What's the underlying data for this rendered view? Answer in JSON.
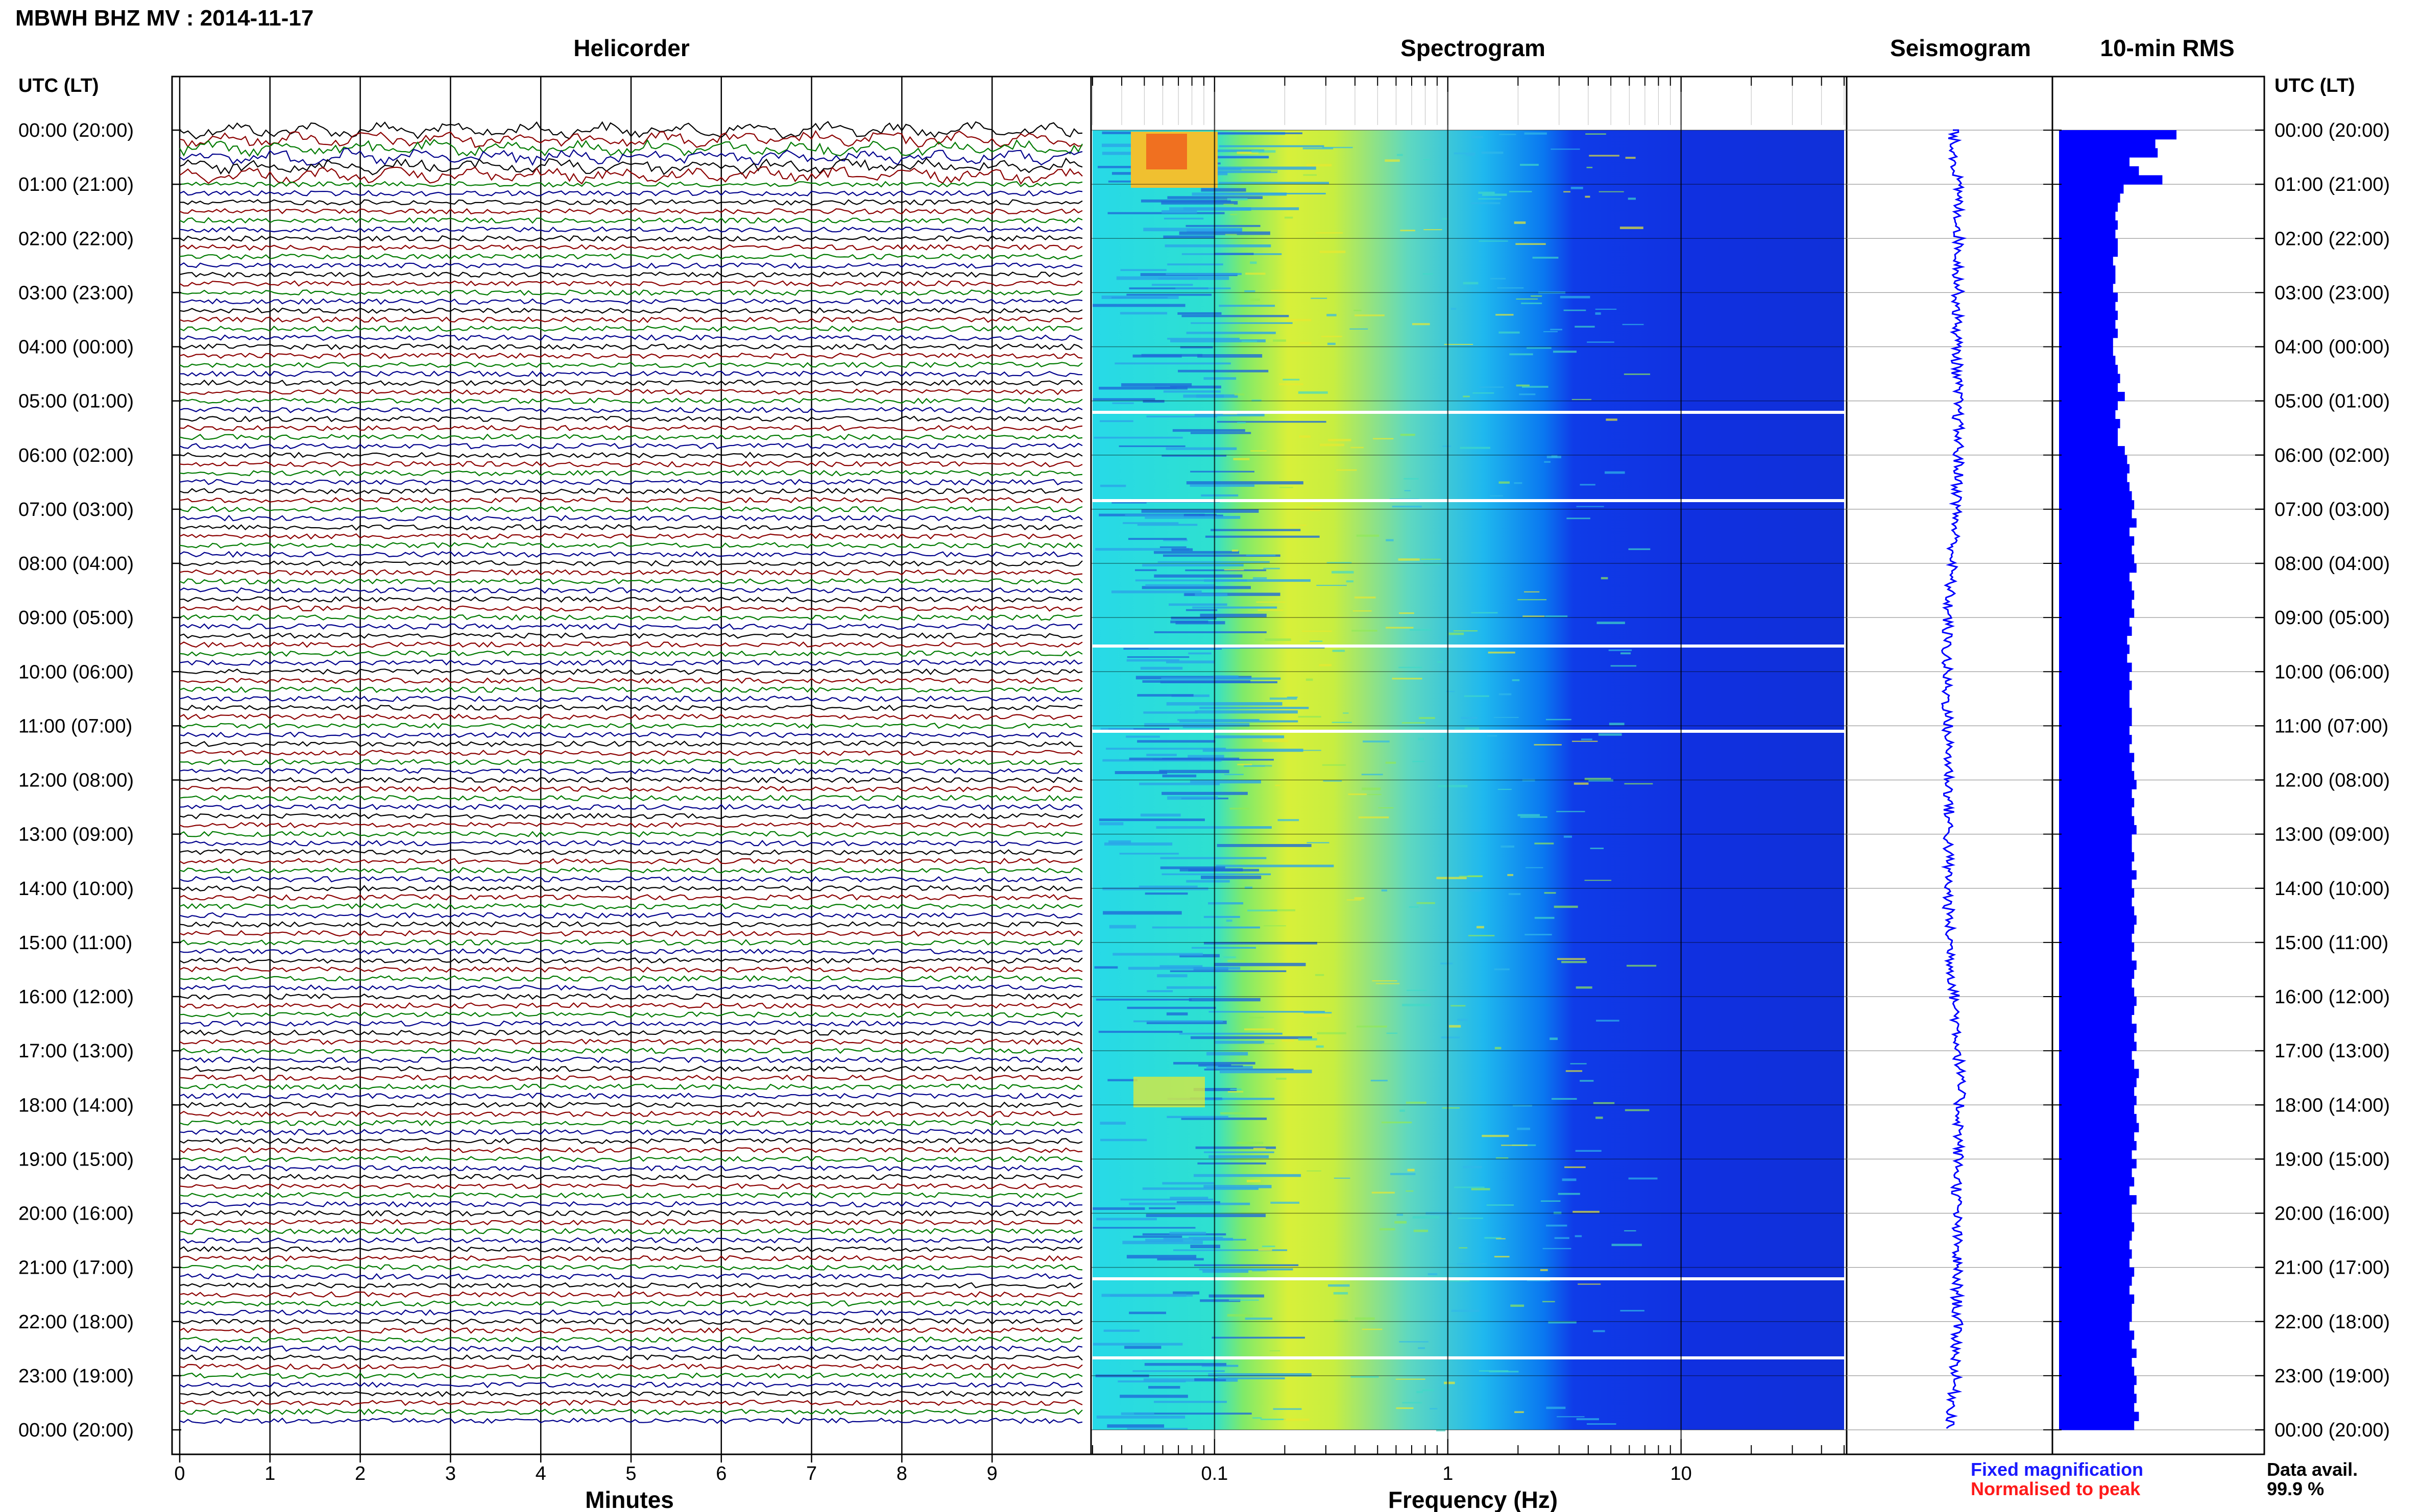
{
  "station_title": "MBWH BHZ MV : 2014-11-17",
  "panels": {
    "helicorder": "Helicorder",
    "spectrogram": "Spectrogram",
    "seismogram": "Seismogram",
    "rms": "10-min RMS"
  },
  "axis_header_left": "UTC (LT)",
  "axis_header_right": "UTC (LT)",
  "hour_labels": [
    "00:00 (20:00)",
    "01:00 (21:00)",
    "02:00 (22:00)",
    "03:00 (23:00)",
    "04:00 (00:00)",
    "05:00 (01:00)",
    "06:00 (02:00)",
    "07:00 (03:00)",
    "08:00 (04:00)",
    "09:00 (05:00)",
    "10:00 (06:00)",
    "11:00 (07:00)",
    "12:00 (08:00)",
    "13:00 (09:00)",
    "14:00 (10:00)",
    "15:00 (11:00)",
    "16:00 (12:00)",
    "17:00 (13:00)",
    "18:00 (14:00)",
    "19:00 (15:00)",
    "20:00 (16:00)",
    "21:00 (17:00)",
    "22:00 (18:00)",
    "23:00 (19:00)",
    "00:00 (20:00)"
  ],
  "minutes_ticks": [
    "0",
    "1",
    "2",
    "3",
    "4",
    "5",
    "6",
    "7",
    "8",
    "9"
  ],
  "minutes_label": "Minutes",
  "freq_ticks": [
    "0.1",
    "1",
    "10"
  ],
  "freq_label": "Frequency (Hz)",
  "legend": {
    "fixed": "Fixed magnification",
    "normalised": "Normalised to peak",
    "fixed_color": "#1a1aff",
    "normalised_color": "#ff1a1a"
  },
  "data_avail": {
    "label": "Data avail.",
    "value": "99.9 %"
  },
  "colors": {
    "trace_cycle": [
      "#000000",
      "#8b0000",
      "#007a00",
      "#00008b"
    ],
    "rms_bar": "#0000ff",
    "seismogram": "#0000ff"
  },
  "chart_data": [
    {
      "type": "line",
      "title": "Helicorder",
      "xlabel": "Minutes",
      "xlim": [
        0,
        10
      ],
      "rows": 144,
      "row_minutes": 10,
      "series_color_cycle": [
        "black",
        "darkred",
        "green",
        "darkblue"
      ]
    },
    {
      "type": "heatmap",
      "title": "Spectrogram",
      "xlabel": "Frequency (Hz)",
      "x_scale": "log",
      "xlim": [
        0.03,
        50
      ],
      "y_range_utc": [
        "00:00",
        "24:00"
      ],
      "colormap": "jet"
    },
    {
      "type": "line",
      "title": "Seismogram",
      "y_range_utc": [
        "00:00",
        "24:00"
      ]
    },
    {
      "type": "bar",
      "title": "10-min RMS",
      "orientation": "horizontal",
      "bin_minutes": 10,
      "relative_values": [
        1.0,
        0.82,
        0.84,
        0.6,
        0.68,
        0.88,
        0.55,
        0.52,
        0.5,
        0.48,
        0.5,
        0.48,
        0.5,
        0.5,
        0.46,
        0.48,
        0.48,
        0.46,
        0.5,
        0.48,
        0.5,
        0.48,
        0.5,
        0.46,
        0.46,
        0.48,
        0.5,
        0.52,
        0.5,
        0.56,
        0.5,
        0.48,
        0.52,
        0.5,
        0.5,
        0.56,
        0.58,
        0.6,
        0.58,
        0.6,
        0.62,
        0.64,
        0.62,
        0.66,
        0.6,
        0.64,
        0.62,
        0.64,
        0.66,
        0.6,
        0.62,
        0.64,
        0.62,
        0.64,
        0.6,
        0.62,
        0.58,
        0.6,
        0.58,
        0.62,
        0.6,
        0.62,
        0.6,
        0.6,
        0.62,
        0.62,
        0.6,
        0.62,
        0.6,
        0.64,
        0.62,
        0.64,
        0.66,
        0.62,
        0.64,
        0.62,
        0.64,
        0.66,
        0.62,
        0.62,
        0.64,
        0.62,
        0.66,
        0.62,
        0.64,
        0.62,
        0.64,
        0.66,
        0.64,
        0.62,
        0.64,
        0.62,
        0.66,
        0.64,
        0.62,
        0.64,
        0.66,
        0.64,
        0.62,
        0.66,
        0.64,
        0.66,
        0.62,
        0.64,
        0.68,
        0.66,
        0.64,
        0.66,
        0.64,
        0.66,
        0.68,
        0.64,
        0.66,
        0.62,
        0.66,
        0.62,
        0.64,
        0.6,
        0.66,
        0.62,
        0.62,
        0.64,
        0.62,
        0.6,
        0.62,
        0.6,
        0.64,
        0.62,
        0.6,
        0.64,
        0.62,
        0.62,
        0.6,
        0.64,
        0.62,
        0.66,
        0.62,
        0.64,
        0.66,
        0.64,
        0.66,
        0.64,
        0.68,
        0.64
      ]
    }
  ]
}
